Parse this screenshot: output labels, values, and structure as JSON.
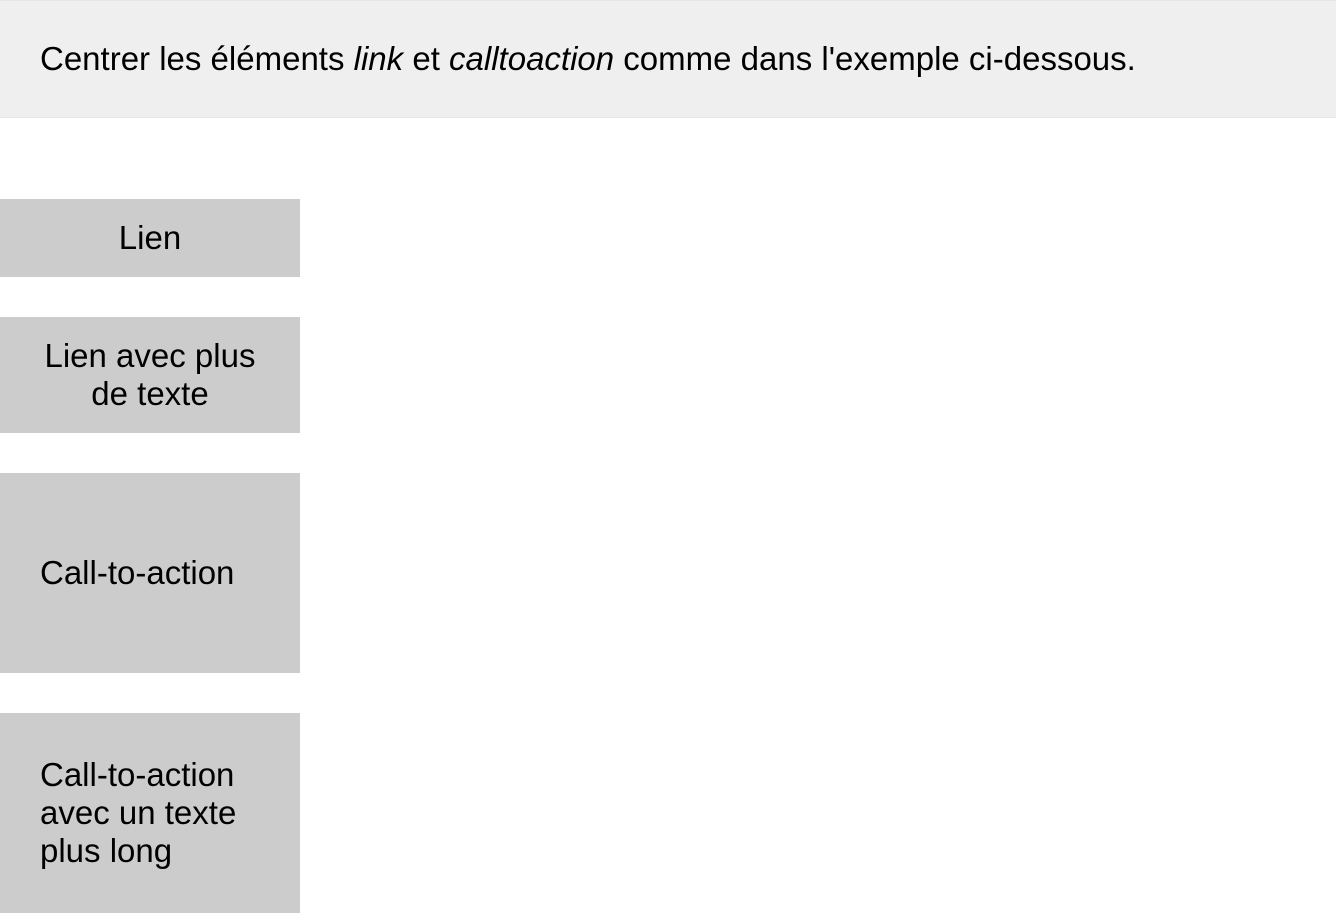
{
  "instruction": {
    "part1": "Centrer les éléments ",
    "emphasis1": "link",
    "part2": " et ",
    "emphasis2": "calltoaction",
    "part3": " comme dans l'exemple ci-dessous."
  },
  "links": [
    {
      "label": "Lien"
    },
    {
      "label": "Lien avec plus de texte"
    }
  ],
  "calltoactions": [
    {
      "label": "Call-to-action"
    },
    {
      "label": "Call-to-action avec un texte plus long"
    }
  ],
  "colors": {
    "banner_background": "#efefef",
    "box_background": "#cccccc",
    "text": "#000000"
  }
}
